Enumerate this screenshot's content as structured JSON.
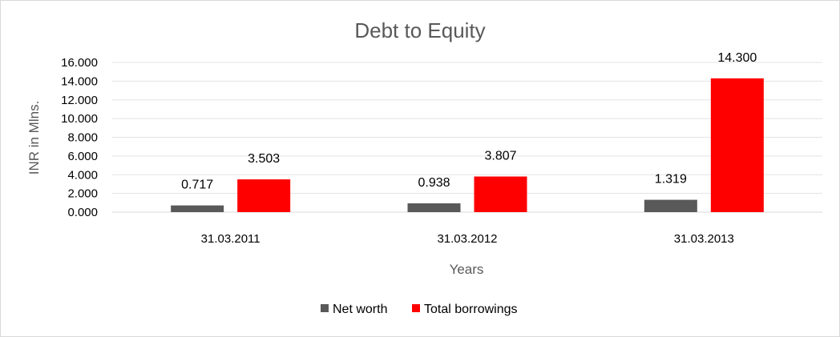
{
  "chart_data": {
    "type": "bar",
    "title": "Debt to Equity",
    "xlabel": "Years",
    "ylabel": "INR in Mlns.",
    "categories": [
      "31.03.2011",
      "31.03.2012",
      "31.03.2013"
    ],
    "series": [
      {
        "name": "Net worth",
        "values": [
          0.717,
          0.938,
          1.319
        ],
        "color": "#595959",
        "labels": [
          "0.717",
          "0.938",
          "1.319"
        ]
      },
      {
        "name": "Total borrowings",
        "values": [
          3.503,
          3.807,
          14.3
        ],
        "color": "#ff0000",
        "labels": [
          "3.503",
          "3.807",
          "14.300"
        ]
      }
    ],
    "ylim": [
      0,
      16
    ],
    "yticks": [
      "0.000",
      "2.000",
      "4.000",
      "6.000",
      "8.000",
      "10.000",
      "12.000",
      "14.000",
      "16.000"
    ],
    "grid": true,
    "legend_position": "bottom"
  }
}
